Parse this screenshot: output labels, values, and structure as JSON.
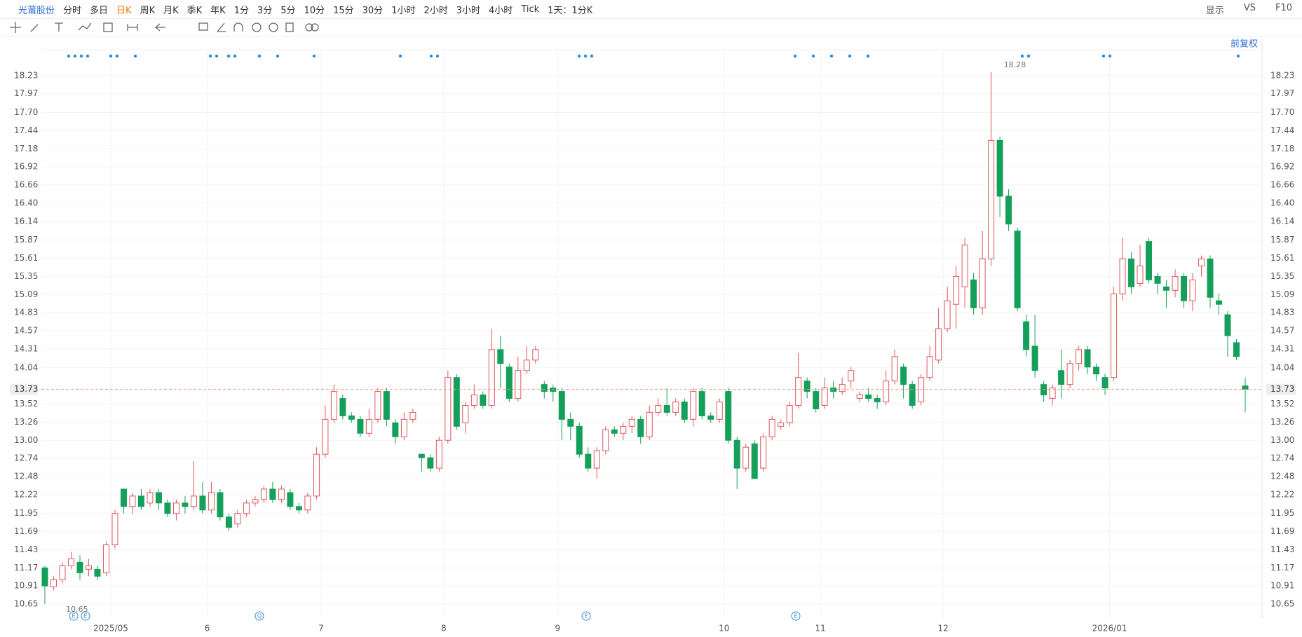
{
  "toolbar": {
    "stock": "光莆股份",
    "periods": [
      "分时",
      "多日",
      "日K",
      "周K",
      "月K",
      "季K",
      "年K",
      "1分",
      "3分",
      "5分",
      "10分",
      "15分",
      "30分",
      "1小时",
      "2小时",
      "3小时",
      "4小时",
      "Tick",
      "1天：1分K"
    ],
    "right": [
      "显示",
      "VS",
      "F10"
    ],
    "adjust": "前复权"
  },
  "event_markers": [
    "E",
    "E",
    "Q",
    "E",
    "E"
  ],
  "chart_data": {
    "type": "candlestick",
    "up_color": "#e0555b",
    "down_color": "#14a05a",
    "grid": true,
    "ylim": [
      10.45,
      18.6
    ],
    "yticks": [
      10.65,
      10.91,
      11.17,
      11.43,
      11.69,
      11.95,
      12.22,
      12.48,
      12.74,
      {
        "value": 13,
        "label": "13.00"
      },
      13.26,
      13.52,
      14.04,
      14.31,
      14.57,
      14.83,
      15.09,
      15.35,
      15.61,
      15.87,
      16.14,
      {
        "value": 16.4,
        "label": "16.40"
      },
      16.66,
      16.92,
      17.18,
      17.44,
      {
        "value": 17.7,
        "label": "17.70"
      },
      17.97,
      18.23
    ],
    "categories": [
      null,
      null,
      null,
      null,
      null,
      null,
      null,
      null,
      "2025/05",
      null,
      null,
      null,
      null,
      null,
      null,
      null,
      null,
      null,
      null,
      "6",
      null,
      null,
      null,
      null,
      null,
      null,
      null,
      null,
      null,
      null,
      null,
      null,
      "7",
      null,
      null,
      null,
      null,
      null,
      null,
      null,
      null,
      null,
      null,
      null,
      null,
      null,
      "8",
      null,
      null,
      null,
      null,
      null,
      null,
      null,
      null,
      null,
      null,
      null,
      null,
      "9",
      null,
      null,
      null,
      null,
      null,
      null,
      null,
      null,
      null,
      null,
      null,
      null,
      null,
      null,
      null,
      null,
      null,
      null,
      "10",
      null,
      null,
      null,
      null,
      null,
      null,
      null,
      null,
      null,
      null,
      "11",
      null,
      null,
      null,
      null,
      null,
      null,
      null,
      null,
      null,
      null,
      null,
      null,
      null,
      "12",
      null,
      null,
      null,
      null,
      null,
      null,
      null,
      null,
      null,
      null,
      null,
      null,
      null,
      null,
      null,
      null,
      null,
      null,
      "2026/01",
      null,
      null,
      null,
      null,
      null,
      null,
      null,
      null,
      null,
      null,
      null,
      null,
      null,
      null,
      null
    ],
    "open": [
      11.17,
      10.9,
      11,
      11.2,
      11.25,
      11.15,
      11.15,
      11.1,
      11.5,
      12.3,
      12.05,
      12.2,
      12.1,
      12.25,
      12.1,
      11.95,
      12.1,
      12.05,
      12.2,
      12,
      12.25,
      11.9,
      11.8,
      11.95,
      12.1,
      12.15,
      12.3,
      12.15,
      12.25,
      12.05,
      12,
      12.2,
      12.8,
      13.3,
      13.6,
      13.35,
      13.3,
      13.1,
      13.3,
      13.7,
      13.25,
      13.05,
      13.3,
      12.8,
      12.75,
      12.6,
      13,
      13.9,
      13.25,
      13.5,
      13.65,
      13.5,
      14.3,
      14.05,
      13.6,
      14,
      14.15,
      13.8,
      13.75,
      13.7,
      13.3,
      13.2,
      12.8,
      12.6,
      12.85,
      13.15,
      13.1,
      13.2,
      13.3,
      13.05,
      13.4,
      13.5,
      13.4,
      13.55,
      13.3,
      13.7,
      13.35,
      13.3,
      13.7,
      13,
      12.6,
      12.95,
      12.6,
      13.05,
      13.2,
      13.25,
      13.5,
      13.85,
      13.7,
      13.5,
      13.75,
      13.7,
      13.85,
      13.6,
      13.65,
      13.6,
      13.55,
      13.85,
      14.05,
      13.8,
      13.55,
      13.9,
      14.15,
      14.6,
      14.95,
      15.2,
      15.3,
      14.9,
      15.6,
      17.3,
      16.5,
      16,
      14.7,
      14.35,
      13.8,
      13.6,
      14,
      13.8,
      14.1,
      14.3,
      14.05,
      13.9,
      13.9,
      15.1,
      15.6,
      15.25,
      15.85,
      15.35,
      15.2,
      15.15,
      15.35,
      15,
      15.5,
      15.6,
      15,
      14.8,
      14.4,
      13.78
    ],
    "high": [
      11.2,
      11.05,
      11.25,
      11.4,
      11.35,
      11.3,
      11.2,
      11.55,
      12,
      12.3,
      12.25,
      12.3,
      12.3,
      12.3,
      12.15,
      12.15,
      12.2,
      12.7,
      12.4,
      12.4,
      12.3,
      11.95,
      12,
      12.15,
      12.2,
      12.35,
      12.4,
      12.35,
      12.3,
      12.1,
      12.25,
      12.9,
      13.5,
      13.8,
      13.65,
      13.4,
      13.35,
      13.45,
      13.75,
      13.75,
      13.3,
      13.4,
      13.45,
      12.8,
      12.8,
      13.05,
      14,
      13.95,
      13.55,
      13.8,
      13.7,
      14.6,
      14.5,
      14.1,
      14.2,
      14.35,
      14.35,
      13.85,
      13.8,
      13.75,
      13.4,
      13.25,
      12.9,
      12.9,
      13.2,
      13.2,
      13.25,
      13.35,
      13.35,
      13.5,
      13.6,
      13.75,
      13.6,
      13.6,
      13.75,
      13.75,
      13.4,
      13.6,
      13.75,
      13.05,
      12.95,
      13,
      13.1,
      13.35,
      13.3,
      13.55,
      14.25,
      13.9,
      13.75,
      13.9,
      13.85,
      13.9,
      14.05,
      13.7,
      13.75,
      13.65,
      14,
      14.3,
      14.1,
      13.85,
      13.95,
      14.35,
      14.9,
      15.2,
      15.5,
      15.9,
      15.4,
      16,
      18.28,
      17.35,
      16.6,
      16.05,
      14.8,
      14.8,
      13.85,
      13.8,
      14.3,
      14.15,
      14.35,
      14.35,
      14.1,
      13.95,
      15.2,
      15.9,
      15.7,
      15.8,
      15.9,
      15.4,
      15.3,
      15.45,
      15.4,
      15.4,
      15.65,
      15.65,
      15.1,
      14.85,
      14.45,
      13.9
    ],
    "low": [
      10.65,
      10.85,
      10.95,
      11.15,
      11,
      11.05,
      11,
      11.05,
      11.45,
      11.95,
      11.95,
      12,
      12.05,
      12,
      11.9,
      11.85,
      11.95,
      12,
      11.95,
      11.95,
      11.85,
      11.7,
      11.75,
      11.9,
      12.05,
      12.1,
      12.1,
      12.1,
      12,
      11.95,
      11.95,
      12.15,
      12.75,
      13.25,
      13.3,
      13.25,
      13.05,
      13.05,
      13.25,
      13.2,
      12.95,
      13,
      13.25,
      12.55,
      12.55,
      12.55,
      12.95,
      13.15,
      13.1,
      13.45,
      13.45,
      13.45,
      13.75,
      13.55,
      13.55,
      13.95,
      14.1,
      13.6,
      13.55,
      13,
      13,
      12.75,
      12.55,
      12.45,
      12.8,
      13.05,
      13,
      13.1,
      12.95,
      13,
      13.35,
      13.35,
      13.35,
      13.25,
      13.2,
      13.3,
      13.25,
      13.25,
      12.95,
      12.3,
      12.55,
      12.45,
      12.55,
      13,
      13.15,
      13.2,
      13.45,
      13.6,
      13.4,
      13.45,
      13.6,
      13.65,
      13.75,
      13.55,
      13.55,
      13.45,
      13.5,
      13.8,
      13.6,
      13.45,
      13.5,
      13.85,
      14.1,
      14.55,
      14.6,
      14.9,
      14.8,
      14.8,
      15.5,
      16.2,
      16,
      14.85,
      14.2,
      13.9,
      13.55,
      13.5,
      13.6,
      13.75,
      14,
      13.95,
      13.85,
      13.65,
      13.85,
      15,
      15.1,
      15.2,
      15.25,
      15.1,
      14.9,
      15.05,
      14.9,
      14.85,
      15.35,
      14.9,
      14.8,
      14.2,
      14.15,
      13.4
    ],
    "close": [
      10.91,
      11,
      11.2,
      11.3,
      11.1,
      11.2,
      11.05,
      11.5,
      11.95,
      12.05,
      12.2,
      12.05,
      12.25,
      12.1,
      11.95,
      12.1,
      12.05,
      12.2,
      12,
      12.25,
      11.9,
      11.75,
      11.95,
      12.1,
      12.15,
      12.3,
      12.15,
      12.3,
      12.05,
      12,
      12.2,
      12.8,
      13.3,
      13.7,
      13.35,
      13.3,
      13.1,
      13.3,
      13.7,
      13.3,
      13.05,
      13.3,
      13.4,
      12.75,
      12.6,
      13,
      13.9,
      13.2,
      13.5,
      13.65,
      13.5,
      14.3,
      14.1,
      13.6,
      14,
      14.15,
      14.3,
      13.7,
      13.7,
      13.3,
      13.2,
      12.8,
      12.6,
      12.85,
      13.15,
      13.1,
      13.2,
      13.3,
      13.05,
      13.4,
      13.5,
      13.4,
      13.55,
      13.3,
      13.7,
      13.35,
      13.3,
      13.55,
      13,
      12.6,
      12.9,
      12.45,
      13.05,
      13.3,
      13.25,
      13.5,
      13.9,
      13.7,
      13.45,
      13.75,
      13.7,
      13.8,
      14,
      13.65,
      13.6,
      13.55,
      13.85,
      14.2,
      13.8,
      13.5,
      13.9,
      14.2,
      14.6,
      15,
      15.35,
      15.8,
      14.9,
      15.6,
      17.3,
      16.5,
      16.1,
      14.9,
      14.3,
      14,
      13.65,
      13.75,
      13.8,
      14.1,
      14.3,
      14.05,
      13.95,
      13.75,
      15.1,
      15.6,
      15.2,
      15.5,
      15.3,
      15.25,
      15.15,
      15.35,
      15,
      15.3,
      15.6,
      15.05,
      14.95,
      14.5,
      14.2,
      13.73
    ]
  }
}
